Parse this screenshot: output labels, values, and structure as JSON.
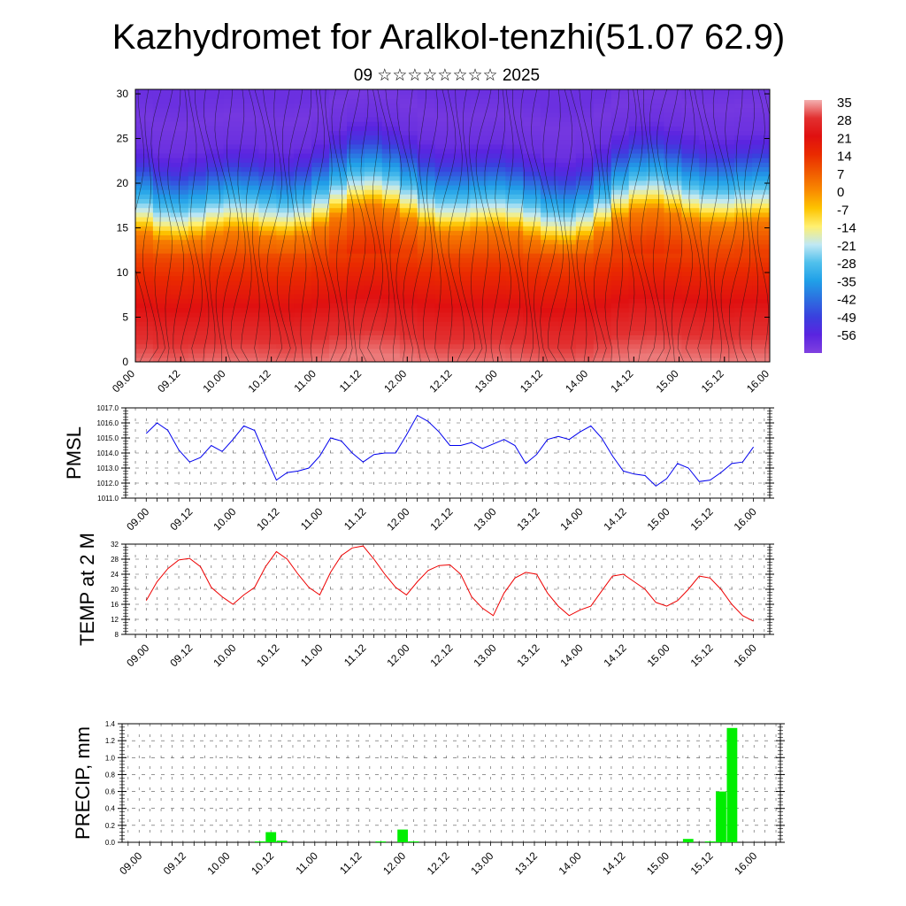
{
  "title": "Kazhydromet for Aralkol-tenzhi(51.07 62.9)",
  "subtitle": "09 ☆☆☆☆☆☆☆☆ 2025",
  "x_tick_labels": [
    "09.00",
    "09.12",
    "10.00",
    "10.12",
    "11.00",
    "11.12",
    "12.00",
    "12.12",
    "13.00",
    "13.12",
    "14.00",
    "14.12",
    "15.00",
    "15.12",
    "16.00"
  ],
  "colors": {
    "pmsl_line": "#0000ee",
    "temp_line": "#ee0000",
    "precip_bar": "#00ee00"
  },
  "chart_data": [
    {
      "type": "heatmap",
      "name_hint": "vertical cross-section",
      "xlabel": "",
      "ylabel": "",
      "ylim": [
        0,
        30.5
      ],
      "y_ticks": [
        0,
        5,
        10,
        15,
        20,
        25,
        30
      ],
      "colorbar": {
        "labels": [
          35,
          28,
          21,
          14,
          7,
          0,
          -7,
          -14,
          -21,
          -28,
          -35,
          -42,
          -49,
          -56
        ],
        "colors": [
          "#f3b0b0",
          "#e23030",
          "#e01010",
          "#ea2a00",
          "#f05a00",
          "#f98a00",
          "#fdc400",
          "#fff070",
          "#c0e8f4",
          "#50c0ec",
          "#20a0e8",
          "#2c70e0",
          "#3a40de",
          "#5a24e0",
          "#8040e0"
        ]
      },
      "profile": [
        [
          0,
          34
        ],
        [
          4,
          28
        ],
        [
          8,
          20
        ],
        [
          12,
          12
        ],
        [
          15,
          4
        ],
        [
          17,
          -14
        ],
        [
          19,
          -28
        ],
        [
          21,
          -40
        ],
        [
          23,
          -52
        ],
        [
          25,
          -58
        ],
        [
          28,
          -60
        ],
        [
          30.5,
          -58
        ]
      ]
    },
    {
      "type": "line",
      "ylabel": "PMSL",
      "ylim": [
        1011.0,
        1017.0
      ],
      "y_ticks": [
        "1011.0",
        "1012.0",
        "1013.0",
        "1014.0",
        "1015.0",
        "1016.0",
        "1017.0"
      ],
      "x": [
        0,
        1,
        2,
        3,
        4,
        5,
        6,
        7,
        8,
        9,
        10,
        11,
        12,
        13,
        14,
        15,
        16,
        17,
        18,
        19,
        20,
        21,
        22,
        23,
        24,
        25,
        26,
        27,
        28,
        29,
        30,
        31,
        32,
        33,
        34,
        35,
        36,
        37,
        38,
        39,
        40,
        41,
        42,
        43,
        44,
        45,
        46,
        47,
        48,
        49,
        50,
        51,
        52,
        53,
        54,
        55,
        56
      ],
      "values": [
        1015.3,
        1016.0,
        1015.5,
        1014.2,
        1013.4,
        1013.7,
        1014.5,
        1014.1,
        1014.9,
        1015.8,
        1015.5,
        1013.8,
        1012.2,
        1012.7,
        1012.8,
        1013.0,
        1013.8,
        1015.0,
        1014.8,
        1014.0,
        1013.4,
        1013.9,
        1014.0,
        1014.0,
        1015.2,
        1016.5,
        1016.1,
        1015.4,
        1014.5,
        1014.5,
        1014.7,
        1014.3,
        1014.6,
        1014.9,
        1014.5,
        1013.3,
        1013.9,
        1014.9,
        1015.1,
        1014.9,
        1015.4,
        1015.8,
        1015.0,
        1013.8,
        1012.8,
        1012.6,
        1012.5,
        1011.8,
        1012.3,
        1013.3,
        1013.0,
        1012.1,
        1012.2,
        1012.7,
        1013.3,
        1013.4,
        1014.4
      ]
    },
    {
      "type": "line",
      "ylabel": "TEMP at 2 M",
      "ylim": [
        8,
        32
      ],
      "y_ticks": [
        "8",
        "12",
        "16",
        "20",
        "24",
        "28",
        "32"
      ],
      "x": [
        0,
        1,
        2,
        3,
        4,
        5,
        6,
        7,
        8,
        9,
        10,
        11,
        12,
        13,
        14,
        15,
        16,
        17,
        18,
        19,
        20,
        21,
        22,
        23,
        24,
        25,
        26,
        27,
        28,
        29,
        30,
        31,
        32,
        33,
        34,
        35,
        36,
        37,
        38,
        39,
        40,
        41,
        42,
        43,
        44,
        45,
        46,
        47,
        48,
        49,
        50,
        51,
        52,
        53,
        54,
        55,
        56
      ],
      "values": [
        17,
        22,
        25.5,
        27.8,
        28.2,
        26,
        20.5,
        18,
        16,
        18.5,
        20.5,
        26,
        30,
        28,
        24,
        20.5,
        18.5,
        24.5,
        29,
        31,
        31.5,
        28,
        24,
        20.5,
        18.5,
        22,
        25,
        26.3,
        26.5,
        24,
        18,
        15,
        13,
        19,
        23,
        24.5,
        24,
        19,
        15.5,
        13,
        14.5,
        15.5,
        19.5,
        23.5,
        24,
        22,
        20,
        16.5,
        15.5,
        17,
        20,
        23.5,
        23,
        20,
        16,
        13,
        11.5
      ]
    },
    {
      "type": "bar",
      "ylabel": "PRECIP, mm",
      "ylim": [
        0,
        1.4
      ],
      "y_ticks": [
        "0.0",
        "0.2",
        "0.4",
        "0.6",
        "0.8",
        "1.0",
        "1.2",
        "1.4"
      ],
      "x": [
        11,
        12,
        13,
        22,
        24,
        25,
        50,
        52,
        53,
        54
      ],
      "values": [
        0.01,
        0.12,
        0.02,
        0.01,
        0.15,
        0.01,
        0.04,
        0.01,
        0.6,
        1.35
      ]
    }
  ]
}
